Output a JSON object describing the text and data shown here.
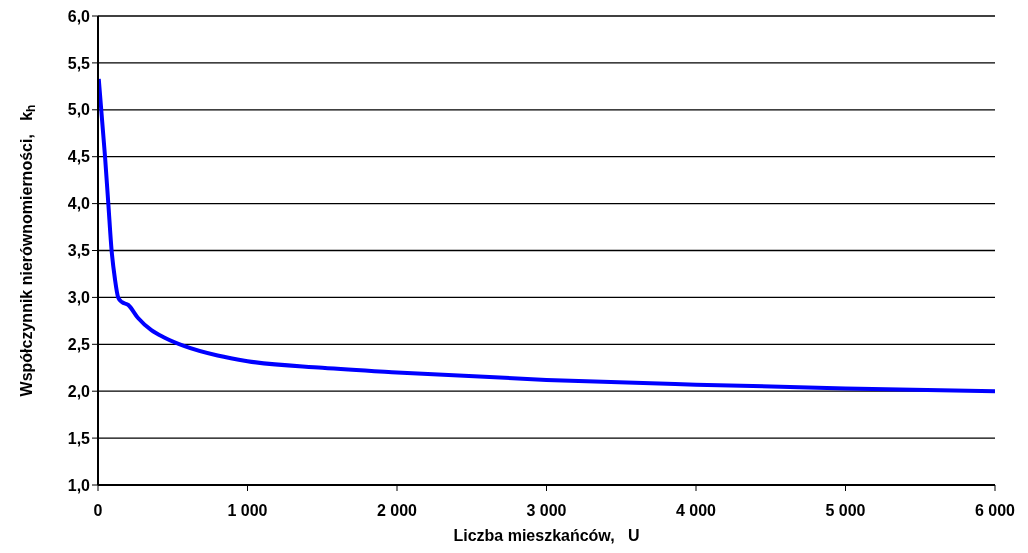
{
  "chart_data": {
    "type": "line",
    "xlabel": "Liczba mieszkańców,   U",
    "ylabel": "Współczynnik nierównomierności,   k$_{h}$",
    "x": [
      5,
      47,
      69,
      91,
      113,
      135,
      160,
      202,
      268,
      357,
      446,
      579,
      800,
      1000,
      1500,
      2000,
      3000,
      4000,
      5000,
      6000
    ],
    "series": [
      {
        "color": "#0000ff",
        "values": [
          5.33,
          4.5,
          4.0,
          3.5,
          3.2,
          3.0,
          2.95,
          2.92,
          2.78,
          2.65,
          2.57,
          2.48,
          2.38,
          2.32,
          2.25,
          2.2,
          2.12,
          2.07,
          2.03,
          2.0
        ]
      }
    ],
    "xlim": [
      0,
      6000
    ],
    "xticks": [
      0,
      {
        "value": 1000,
        "label": "1 000"
      },
      {
        "value": 2000,
        "label": "2 000"
      },
      {
        "value": 3000,
        "label": "3 000"
      },
      {
        "value": 4000,
        "label": "4 000"
      },
      {
        "value": 5000,
        "label": "5 000"
      },
      {
        "value": 6000,
        "label": "6 000"
      }
    ],
    "ylim": [
      1,
      6
    ],
    "yticks": [
      {
        "value": 1,
        "label": "1,0"
      },
      {
        "value": 1.5,
        "label": "1,5"
      },
      {
        "value": 2,
        "label": "2,0"
      },
      {
        "value": 2.5,
        "label": "2,5"
      },
      {
        "value": 3,
        "label": "3,0"
      },
      {
        "value": 3.5,
        "label": "3,5"
      },
      {
        "value": 4,
        "label": "4,0"
      },
      {
        "value": 4.5,
        "label": "4,5"
      },
      {
        "value": 5,
        "label": "5,0"
      },
      {
        "value": 5.5,
        "label": "5,5"
      },
      {
        "value": 6,
        "label": "6,0"
      }
    ],
    "grid": "y",
    "marker": "none",
    "line_style": "solid"
  }
}
